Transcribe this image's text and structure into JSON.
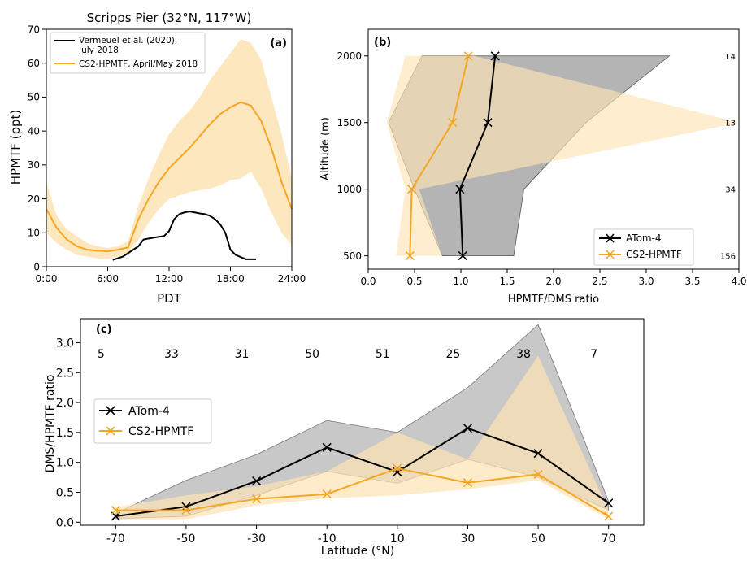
{
  "colors": {
    "black_series": "#000000",
    "orange_series": "#f5a623",
    "orange_band": "#fde3b3",
    "gray_band": "#9b9b9b"
  },
  "chart_data": [
    {
      "id": "panel-a",
      "type": "line",
      "panel_label": "(a)",
      "title": "Scripps Pier (32°N, 117°W)",
      "xlabel": "PDT",
      "ylabel": "HPMTF (ppt)",
      "xlim": [
        0,
        24
      ],
      "ylim": [
        0,
        70
      ],
      "xticks": [
        0,
        6,
        12,
        18,
        24
      ],
      "xtick_labels": [
        "0:00",
        "6:00",
        "12:00",
        "18:00",
        "24:00"
      ],
      "yticks": [
        0,
        10,
        20,
        30,
        40,
        50,
        60,
        70
      ],
      "ytick_labels": [
        "0",
        "10",
        "20",
        "30",
        "40",
        "50",
        "60",
        "70"
      ],
      "legend": {
        "placement": "top-left",
        "entries": [
          "Vermeuel et al. (2020), July 2018",
          "CS2-HPMTF, April/May 2018"
        ]
      },
      "series": [
        {
          "name": "Vermeuel et al. (2020), July 2018",
          "color": "#000000",
          "x": [
            6.5,
            7.5,
            8.5,
            9.0,
            9.5,
            10.0,
            11.0,
            11.5,
            12.0,
            12.5,
            13.0,
            13.5,
            14.0,
            14.5,
            15.0,
            15.5,
            16.0,
            16.5,
            17.0,
            17.5,
            18.0,
            18.5,
            19.5,
            20.5
          ],
          "y": [
            2.0,
            3.0,
            5.0,
            6.0,
            8.0,
            8.3,
            8.8,
            9.0,
            10.5,
            14.0,
            15.5,
            16.0,
            16.3,
            16.0,
            15.7,
            15.5,
            15.0,
            14.0,
            12.5,
            10.0,
            5.0,
            3.5,
            2.2,
            2.2
          ]
        },
        {
          "name": "CS2-HPMTF, April/May 2018",
          "color": "#f5a623",
          "x": [
            0,
            1,
            2,
            3,
            4,
            5,
            6,
            7,
            8,
            9,
            10,
            11,
            12,
            13,
            14,
            15,
            16,
            17,
            18,
            19,
            20,
            21,
            22,
            23,
            24
          ],
          "y": [
            17,
            11.5,
            8,
            6,
            5,
            4.7,
            4.5,
            5,
            5.7,
            14,
            20,
            25,
            29,
            32,
            35,
            38.5,
            42,
            45,
            47,
            48.5,
            47.5,
            43,
            35,
            25,
            17
          ],
          "band_low": [
            10,
            7,
            5,
            3.5,
            3,
            2.5,
            2.3,
            3,
            4,
            8,
            13,
            17,
            20,
            21,
            22,
            22.5,
            23,
            24,
            25.5,
            26,
            28,
            23,
            16,
            10,
            6.5
          ],
          "band_high": [
            25,
            15,
            11,
            9,
            7,
            6,
            5.5,
            6,
            7.5,
            18,
            26,
            33,
            39,
            43,
            46,
            50,
            55,
            59,
            63,
            67,
            66,
            61,
            50,
            39,
            26
          ]
        }
      ]
    },
    {
      "id": "panel-b",
      "type": "line",
      "panel_label": "(b)",
      "xlabel": "HPMTF/DMS ratio",
      "ylabel": "Altitude (m)",
      "xlim": [
        0.0,
        4.0
      ],
      "ylim": [
        400,
        2200
      ],
      "xticks": [
        0.0,
        0.5,
        1.0,
        1.5,
        2.0,
        2.5,
        3.0,
        3.5,
        4.0
      ],
      "xtick_labels": [
        "0.0",
        "0.5",
        "1.0",
        "1.5",
        "2.0",
        "2.5",
        "3.0",
        "3.5",
        "4.0"
      ],
      "yticks": [
        500,
        1000,
        1500,
        2000
      ],
      "ytick_labels": [
        "500",
        "1000",
        "1500",
        "2000"
      ],
      "counts": [
        {
          "altitude": 2000,
          "label": "14"
        },
        {
          "altitude": 1500,
          "label": "13"
        },
        {
          "altitude": 1000,
          "label": "34"
        },
        {
          "altitude": 500,
          "label": "156"
        }
      ],
      "legend": {
        "placement": "bottom-right",
        "entries": [
          "ATom-4",
          "CS2-HPMTF"
        ]
      },
      "series": [
        {
          "name": "ATom-4",
          "color": "#000000",
          "altitude": [
            500,
            1000,
            1500,
            2000
          ],
          "ratio": [
            1.02,
            0.99,
            1.29,
            1.37
          ],
          "band_low": [
            0.8,
            0.5,
            0.22,
            0.58
          ],
          "band_high": [
            1.57,
            1.68,
            2.35,
            3.25
          ]
        },
        {
          "name": "CS2-HPMTF",
          "color": "#f5a623",
          "altitude": [
            500,
            1000,
            1500,
            2000
          ],
          "ratio": [
            0.45,
            0.47,
            0.91,
            1.08
          ],
          "band_low": [
            0.3,
            0.4,
            0.2,
            0.4
          ],
          "band_high": [
            0.8,
            0.55,
            4.0,
            1.15
          ]
        }
      ]
    },
    {
      "id": "panel-c",
      "type": "line",
      "panel_label": "(c)",
      "xlabel": "Latitude (°N)",
      "ylabel": "DMS/HPMTF ratio",
      "xlim": [
        -80,
        80
      ],
      "ylim": [
        -0.05,
        3.4
      ],
      "xticks": [
        -70,
        -50,
        -30,
        -10,
        10,
        30,
        50,
        70
      ],
      "xtick_labels": [
        "-70",
        "-50",
        "-30",
        "-10",
        "10",
        "30",
        "50",
        "70"
      ],
      "yticks": [
        0.0,
        0.5,
        1.0,
        1.5,
        2.0,
        2.5,
        3.0
      ],
      "ytick_labels": [
        "0.0",
        "0.5",
        "1.0",
        "1.5",
        "2.0",
        "2.5",
        "3.0"
      ],
      "counts": [
        {
          "latitude": -70,
          "label": "5"
        },
        {
          "latitude": -50,
          "label": "33"
        },
        {
          "latitude": -30,
          "label": "31"
        },
        {
          "latitude": -10,
          "label": "50"
        },
        {
          "latitude": 10,
          "label": "51"
        },
        {
          "latitude": 30,
          "label": "25"
        },
        {
          "latitude": 50,
          "label": "38"
        },
        {
          "latitude": 70,
          "label": "7"
        }
      ],
      "legend": {
        "placement": "middle-left",
        "entries": [
          "ATom-4",
          "CS2-HPMTF"
        ]
      },
      "series": [
        {
          "name": "ATom-4",
          "color": "#000000",
          "x": [
            -70,
            -50,
            -30,
            -10,
            10,
            30,
            50,
            70
          ],
          "y": [
            0.1,
            0.26,
            0.69,
            1.25,
            0.84,
            1.57,
            1.15,
            0.32
          ],
          "band_low": [
            0.06,
            0.1,
            0.45,
            0.85,
            0.65,
            1.05,
            0.75,
            0.2
          ],
          "band_high": [
            0.15,
            0.7,
            1.13,
            1.7,
            1.5,
            2.25,
            3.3,
            0.35
          ]
        },
        {
          "name": "CS2-HPMTF",
          "color": "#f5a623",
          "x": [
            -70,
            -50,
            -30,
            -10,
            10,
            30,
            50,
            70
          ],
          "y": [
            0.2,
            0.2,
            0.39,
            0.47,
            0.9,
            0.66,
            0.8,
            0.1
          ],
          "band_low": [
            0.05,
            0.05,
            0.28,
            0.4,
            0.45,
            0.55,
            0.7,
            0.05
          ],
          "band_high": [
            0.25,
            0.45,
            0.6,
            0.85,
            1.5,
            1.05,
            2.78,
            0.2
          ]
        }
      ]
    }
  ]
}
